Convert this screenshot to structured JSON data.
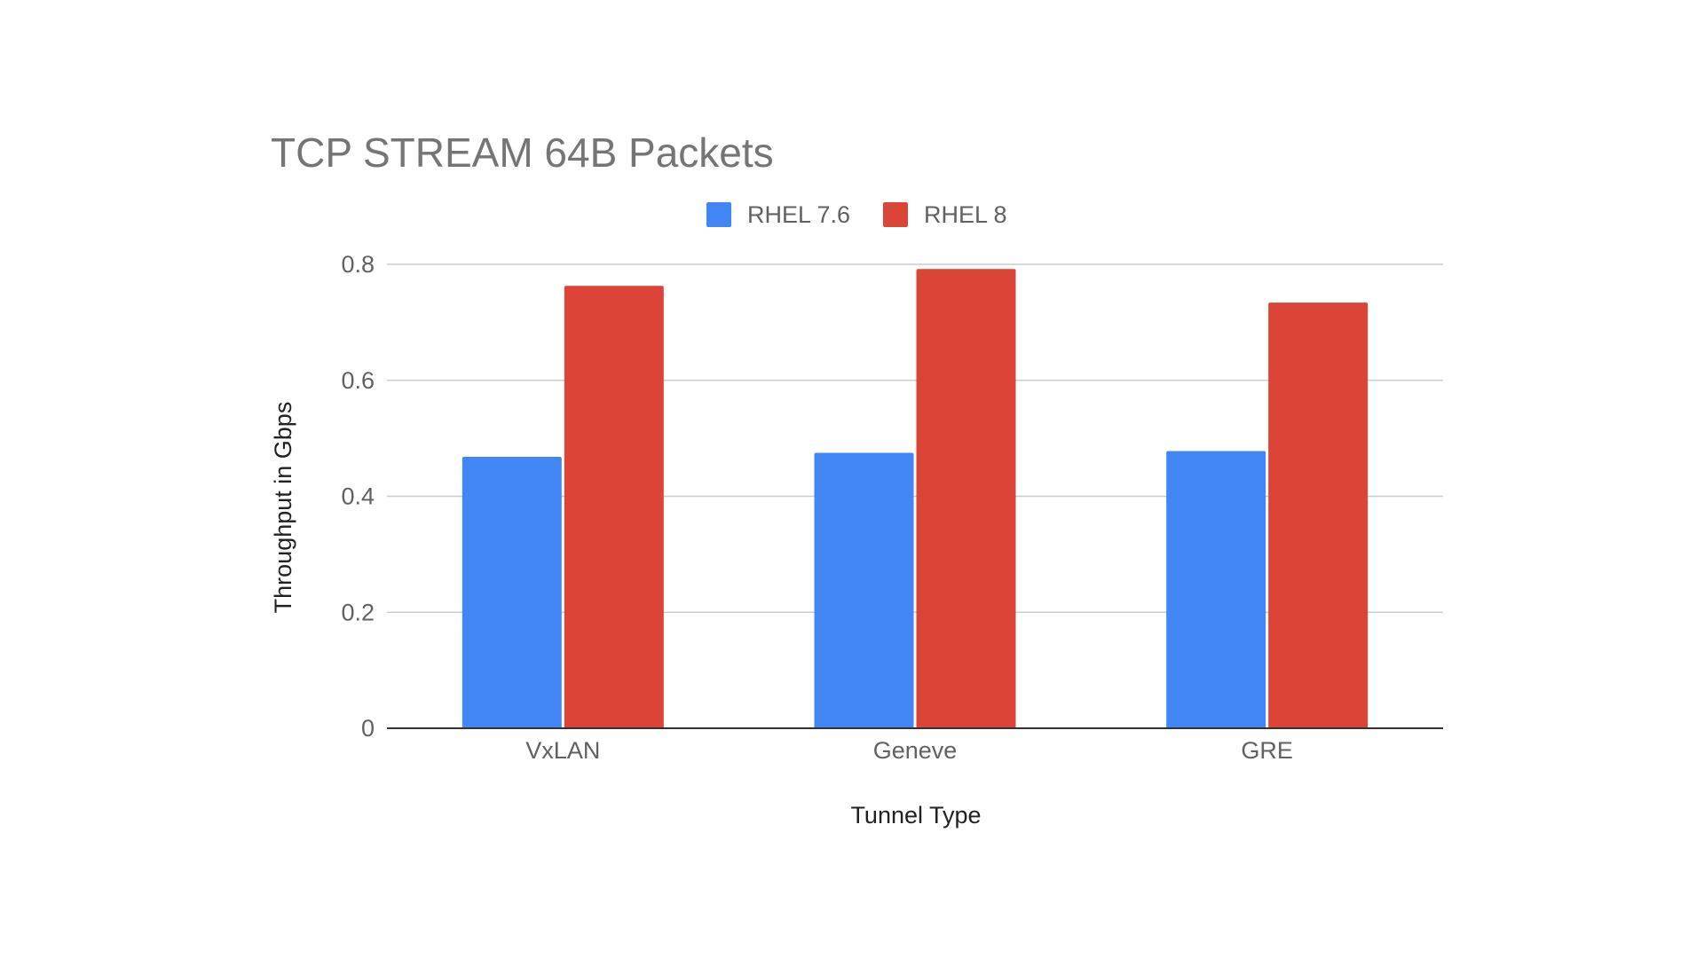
{
  "chart_data": {
    "type": "bar",
    "title": "TCP STREAM 64B Packets",
    "xlabel": "Tunnel Type",
    "ylabel": "Throughput in Gbps",
    "categories": [
      "VxLAN",
      "Geneve",
      "GRE"
    ],
    "series": [
      {
        "name": "RHEL 7.6",
        "color": "#4285F4",
        "values": [
          0.468,
          0.475,
          0.478
        ]
      },
      {
        "name": "RHEL 8",
        "color": "#DB4437",
        "values": [
          0.763,
          0.792,
          0.734
        ]
      }
    ],
    "ylim": [
      0,
      0.8
    ],
    "yticks": [
      "0",
      "0.2",
      "0.4",
      "0.6",
      "0.8"
    ],
    "ytick_values": [
      0,
      0.2,
      0.4,
      0.6,
      0.8
    ],
    "grid": true,
    "legend_position": "top-center"
  }
}
